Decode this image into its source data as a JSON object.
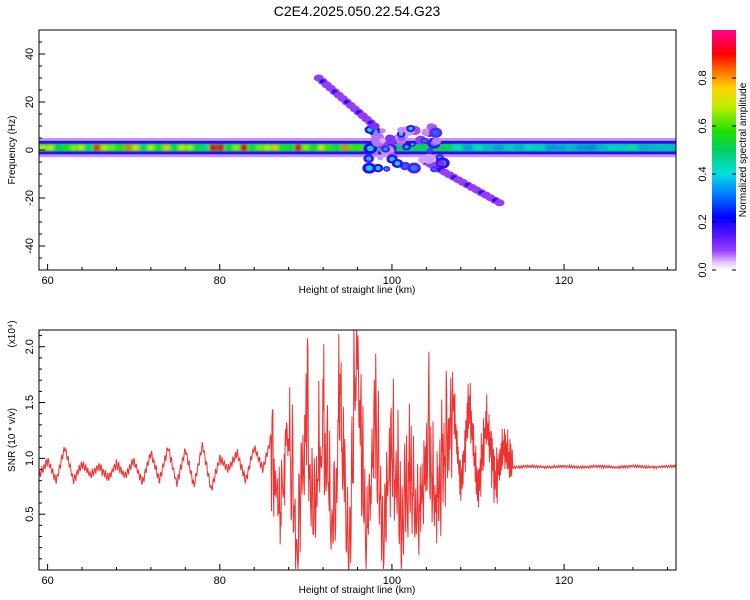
{
  "title": "C2E4.2025.050.22.54.G23",
  "colorbar": {
    "label": "Normalized spectral amplitude",
    "ticks": [
      "0.0",
      "0.2",
      "0.4",
      "0.6",
      "0.8"
    ],
    "tick_values": [
      0.0,
      0.2,
      0.4,
      0.6,
      0.8
    ],
    "range": [
      0,
      1
    ]
  },
  "chart_data": [
    {
      "type": "heatmap",
      "xlabel": "Height of straight line (km)",
      "ylabel": "Frequency (Hz)",
      "xlim": [
        59,
        133
      ],
      "ylim": [
        -50,
        50
      ],
      "xticks": [
        "60",
        "80",
        "100",
        "120"
      ],
      "xtick_values": [
        60,
        80,
        100,
        120
      ],
      "yticks": [
        "40",
        "20",
        "0",
        "-20",
        "-40"
      ],
      "ytick_values": [
        40,
        20,
        0,
        -20,
        -40
      ],
      "colormap": "rainbow (violet 0.0 to magenta 1.0)",
      "features": [
        {
          "name": "carrier band",
          "x": [
            59,
            133
          ],
          "y_center": 1,
          "half_width_hz": 2,
          "amplitude_range": [
            0.4,
            0.9
          ]
        },
        {
          "name": "upper sideband track",
          "x": [
            91.5,
            98
          ],
          "y": [
            30,
            10
          ],
          "amplitude": 0.12
        },
        {
          "name": "lower sideband track",
          "x": [
            104,
            112.5
          ],
          "y": [
            -5,
            -22
          ],
          "amplitude": 0.12
        },
        {
          "name": "dispersed cluster",
          "x": [
            97,
            106
          ],
          "y": [
            -8,
            10
          ],
          "amplitude_range": [
            0.1,
            0.5
          ]
        }
      ]
    },
    {
      "type": "line",
      "xlabel": "Height of straight line (km)",
      "ylabel": "SNR (10 * v/v)",
      "y_multiplier": "(x10⁴)",
      "xlim": [
        59,
        133
      ],
      "ylim": [
        0,
        2.15
      ],
      "xticks": [
        "60",
        "80",
        "100",
        "120"
      ],
      "xtick_values": [
        60,
        80,
        100,
        120
      ],
      "yticks": [
        "0.5",
        "1.0",
        "1.5",
        "2.0"
      ],
      "ytick_values": [
        0.5,
        1.0,
        1.5,
        2.0
      ],
      "color": "#ee3333",
      "series": [
        {
          "x": [
            59,
            60,
            61,
            62,
            63,
            64,
            65,
            66,
            67,
            68,
            69,
            70,
            71,
            72,
            73,
            74,
            75,
            76,
            77,
            78,
            79,
            80,
            81,
            82,
            83,
            84,
            85,
            86,
            87,
            88,
            89,
            90,
            91,
            92,
            93,
            94,
            95,
            96,
            97,
            98,
            99,
            100,
            101,
            102,
            103,
            104,
            105,
            106,
            107,
            108,
            109,
            110,
            111,
            112,
            113,
            114,
            116,
            118,
            120,
            122,
            124,
            126,
            128,
            130,
            132,
            133
          ],
          "y": [
            0.84,
            0.98,
            0.8,
            1.1,
            0.8,
            0.95,
            0.85,
            0.93,
            0.82,
            0.95,
            0.84,
            0.98,
            0.78,
            1.05,
            0.8,
            1.1,
            0.77,
            1.08,
            0.75,
            1.12,
            0.72,
            1.0,
            0.9,
            1.05,
            0.8,
            1.1,
            0.9,
            1.2,
            0.6,
            1.4,
            0.2,
            1.6,
            0.4,
            1.7,
            0.3,
            1.5,
            0.2,
            2.05,
            0.25,
            1.5,
            0.3,
            1.3,
            0.4,
            0.95,
            0.5,
            1.2,
            0.7,
            1.05,
            1.6,
            0.75,
            1.5,
            0.7,
            1.35,
            0.8,
            1.1,
            0.92,
            0.93,
            0.92,
            0.93,
            0.92,
            0.93,
            0.92,
            0.93,
            0.92,
            0.93,
            0.93
          ]
        }
      ]
    }
  ]
}
